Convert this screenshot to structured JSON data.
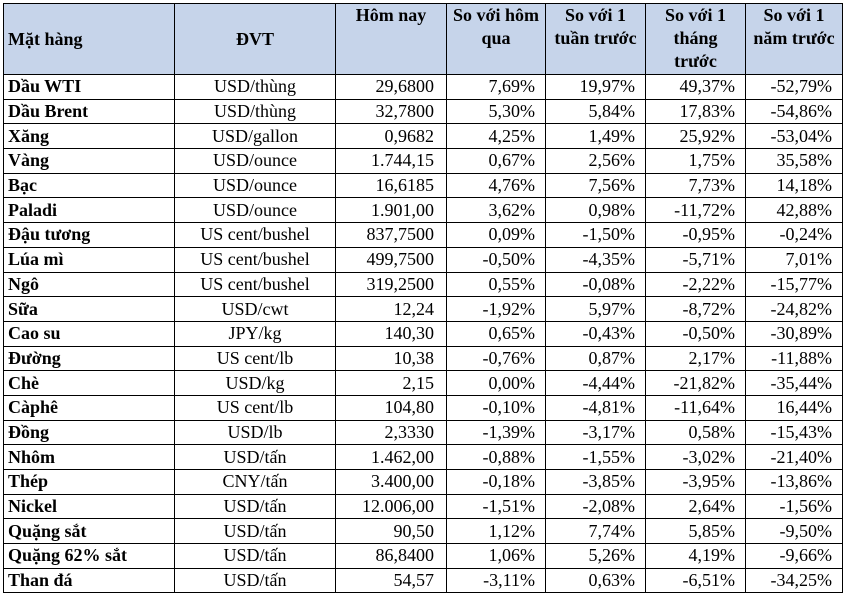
{
  "headers": {
    "item": "Mặt hàng",
    "unit": "ĐVT",
    "today": "Hôm nay",
    "vs_yesterday": "So với hôm qua",
    "vs_week": "So với 1 tuần trước",
    "vs_month": "So với 1 tháng trước",
    "vs_year": "So với 1 năm trước"
  },
  "rows": [
    {
      "name": "Dầu WTI",
      "unit": "USD/thùng",
      "today": "29,6800",
      "d1": "7,69%",
      "w1": "19,97%",
      "m1": "49,37%",
      "y1": "-52,79%"
    },
    {
      "name": "Dầu Brent",
      "unit": "USD/thùng",
      "today": "32,7800",
      "d1": "5,30%",
      "w1": "5,84%",
      "m1": "17,83%",
      "y1": "-54,86%"
    },
    {
      "name": "Xăng",
      "unit": "USD/gallon",
      "today": "0,9682",
      "d1": "4,25%",
      "w1": "1,49%",
      "m1": "25,92%",
      "y1": "-53,04%"
    },
    {
      "name": "Vàng",
      "unit": "USD/ounce",
      "today": "1.744,15",
      "d1": "0,67%",
      "w1": "2,56%",
      "m1": "1,75%",
      "y1": "35,58%"
    },
    {
      "name": "Bạc",
      "unit": "USD/ounce",
      "today": "16,6185",
      "d1": "4,76%",
      "w1": "7,56%",
      "m1": "7,73%",
      "y1": "14,18%"
    },
    {
      "name": "Paladi",
      "unit": "USD/ounce",
      "today": "1.901,00",
      "d1": "3,62%",
      "w1": "0,98%",
      "m1": "-11,72%",
      "y1": "42,88%"
    },
    {
      "name": "Đậu tương",
      "unit": "US cent/bushel",
      "today": "837,7500",
      "d1": "0,09%",
      "w1": "-1,50%",
      "m1": "-0,95%",
      "y1": "-0,24%"
    },
    {
      "name": "Lúa mì",
      "unit": "US cent/bushel",
      "today": "499,7500",
      "d1": "-0,50%",
      "w1": "-4,35%",
      "m1": "-5,71%",
      "y1": "7,01%"
    },
    {
      "name": "Ngô",
      "unit": "US cent/bushel",
      "today": "319,2500",
      "d1": "0,55%",
      "w1": "-0,08%",
      "m1": "-2,22%",
      "y1": "-15,77%"
    },
    {
      "name": "Sữa",
      "unit": "USD/cwt",
      "today": "12,24",
      "d1": "-1,92%",
      "w1": "5,97%",
      "m1": "-8,72%",
      "y1": "-24,82%"
    },
    {
      "name": "Cao su",
      "unit": "JPY/kg",
      "today": "140,30",
      "d1": "0,65%",
      "w1": "-0,43%",
      "m1": "-0,50%",
      "y1": "-30,89%"
    },
    {
      "name": "Đường",
      "unit": "US cent/lb",
      "today": "10,38",
      "d1": "-0,76%",
      "w1": "0,87%",
      "m1": "2,17%",
      "y1": "-11,88%"
    },
    {
      "name": "Chè",
      "unit": "USD/kg",
      "today": "2,15",
      "d1": "0,00%",
      "w1": "-4,44%",
      "m1": "-21,82%",
      "y1": "-35,44%"
    },
    {
      "name": "Càphê",
      "unit": "US cent/lb",
      "today": "104,80",
      "d1": "-0,10%",
      "w1": "-4,81%",
      "m1": "-11,64%",
      "y1": "16,44%"
    },
    {
      "name": "Đồng",
      "unit": "USD/lb",
      "today": "2,3330",
      "d1": "-1,39%",
      "w1": "-3,17%",
      "m1": "0,58%",
      "y1": "-15,43%"
    },
    {
      "name": "Nhôm",
      "unit": "USD/tấn",
      "today": "1.462,00",
      "d1": "-0,88%",
      "w1": "-1,55%",
      "m1": "-3,02%",
      "y1": "-21,40%"
    },
    {
      "name": "Thép",
      "unit": "CNY/tấn",
      "today": "3.400,00",
      "d1": "-0,18%",
      "w1": "-3,85%",
      "m1": "-3,95%",
      "y1": "-13,86%"
    },
    {
      "name": "Nickel",
      "unit": "USD/tấn",
      "today": "12.006,00",
      "d1": "-1,51%",
      "w1": "-2,08%",
      "m1": "2,64%",
      "y1": "-1,56%"
    },
    {
      "name": "Quặng sắt",
      "unit": "USD/tấn",
      "today": "90,50",
      "d1": "1,12%",
      "w1": "7,74%",
      "m1": "5,85%",
      "y1": "-9,50%"
    },
    {
      "name": "Quặng 62% sắt",
      "unit": "USD/tấn",
      "today": "86,8400",
      "d1": "1,06%",
      "w1": "5,26%",
      "m1": "4,19%",
      "y1": "-9,66%"
    },
    {
      "name": "Than đá",
      "unit": "USD/tấn",
      "today": "54,57",
      "d1": "-3,11%",
      "w1": "0,63%",
      "m1": "-6,51%",
      "y1": "-34,25%"
    }
  ]
}
